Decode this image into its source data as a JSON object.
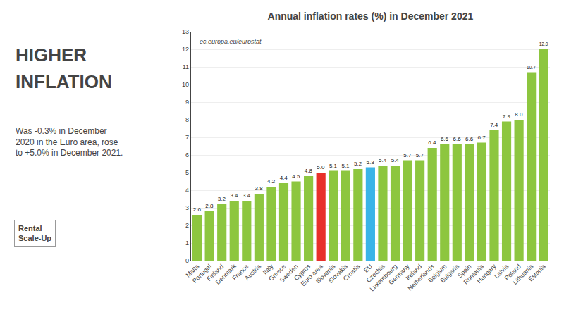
{
  "chart_data": {
    "type": "bar",
    "title": "Annual inflation rates (%) in December 2021",
    "subtitle": "Was -0.3% in December\n2020 in the Euro area, rose\nto +5.0% in December 2021.",
    "annotations": [
      "HIGHER",
      "INFLATION",
      "Rental\nScale-Up",
      "ec.europa.eu/eurostat"
    ],
    "categories": [
      "Malta",
      "Portugal",
      "Finland",
      "Denmark",
      "France",
      "Austria",
      "Italy",
      "Greece",
      "Sweden",
      "Cyprus",
      "Euro area",
      "Slovenia",
      "Slovakia",
      "Croatia",
      "EU",
      "Czechia",
      "Luxembourg",
      "Germany",
      "Ireland",
      "Netherlands",
      "Belgium",
      "Bulgaria",
      "Spain",
      "Romania",
      "Hungary",
      "Latvia",
      "Poland",
      "Lithuania",
      "Estonia"
    ],
    "values": [
      2.6,
      2.8,
      3.2,
      3.4,
      3.4,
      3.8,
      4.2,
      4.4,
      4.5,
      4.8,
      5.0,
      5.1,
      5.1,
      5.2,
      5.3,
      5.4,
      5.4,
      5.7,
      5.7,
      6.4,
      6.6,
      6.6,
      6.6,
      6.7,
      7.4,
      7.9,
      8.0,
      10.7,
      12.0
    ],
    "value_labels": [
      "2.6",
      "2.8",
      "3.2",
      "3.4",
      "3.4",
      "3.8",
      "4.2",
      "4.4",
      "4.5",
      "4.8",
      "5.0",
      "5.1",
      "5.1",
      "5.2",
      "5.3",
      "5.4",
      "5.4",
      "5.7",
      "5.7",
      "6.4",
      "6.6",
      "6.6",
      "6.6",
      "6.7",
      "7.4",
      "7.9",
      "8.0",
      "10.7",
      "12.0"
    ],
    "colors": [
      "#8dc63f",
      "#8dc63f",
      "#8dc63f",
      "#8dc63f",
      "#8dc63f",
      "#8dc63f",
      "#8dc63f",
      "#8dc63f",
      "#8dc63f",
      "#8dc63f",
      "#e8302a",
      "#8dc63f",
      "#8dc63f",
      "#8dc63f",
      "#3ab4e8",
      "#8dc63f",
      "#8dc63f",
      "#8dc63f",
      "#8dc63f",
      "#8dc63f",
      "#8dc63f",
      "#8dc63f",
      "#8dc63f",
      "#8dc63f",
      "#8dc63f",
      "#8dc63f",
      "#8dc63f",
      "#8dc63f",
      "#8dc63f"
    ],
    "ylim": [
      0,
      13
    ],
    "yticks": [
      0,
      1,
      2,
      3,
      4,
      5,
      6,
      7,
      8,
      9,
      10,
      11,
      12,
      13
    ],
    "grid": true,
    "data_labels": true
  }
}
